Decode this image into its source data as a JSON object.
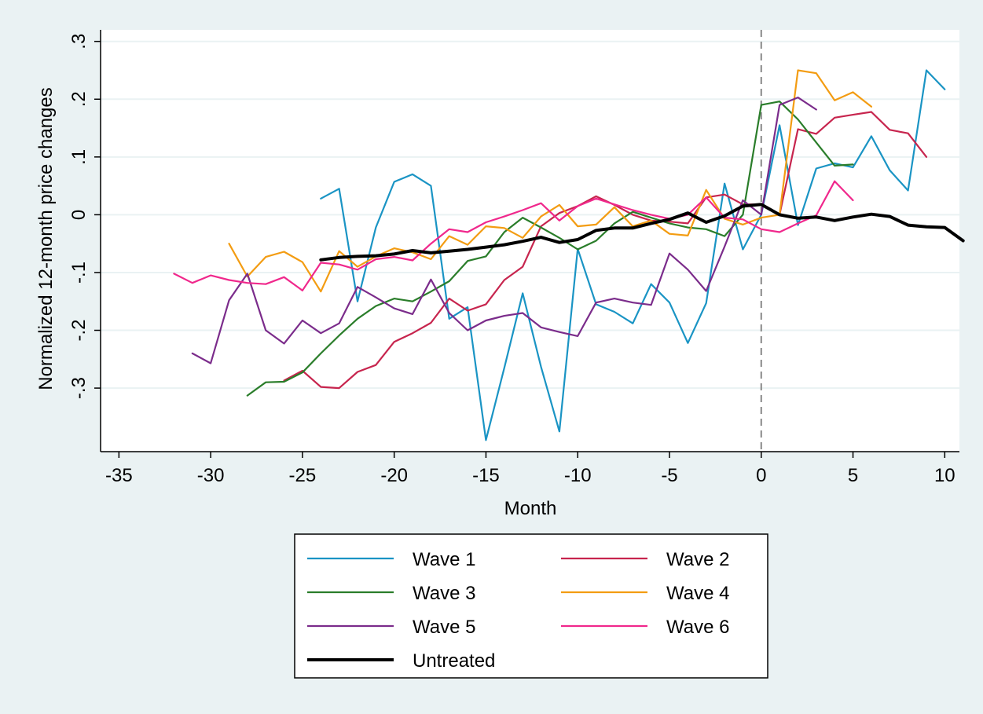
{
  "chart_data": {
    "type": "line",
    "title": "",
    "xlabel": "Month",
    "ylabel": "Normalized 12-month price changes",
    "xlim": [
      -36,
      10.8
    ],
    "ylim": [
      -0.41,
      0.32
    ],
    "xticks": [
      -35,
      -30,
      -25,
      -20,
      -15,
      -10,
      -5,
      0,
      5,
      10
    ],
    "yticks": [
      0.3,
      0.2,
      0.1,
      0,
      -0.1,
      -0.2,
      -0.3
    ],
    "ytick_labels": [
      ".3",
      ".2",
      ".1",
      "0",
      "-.1",
      "-.2",
      "-.3"
    ],
    "vline_x": 0,
    "grid": "horizontal",
    "legend_position": "bottom",
    "series": [
      {
        "name": "Wave 1",
        "color": "#1a94c4",
        "start": -24,
        "values": [
          0.028,
          0.045,
          -0.15,
          -0.022,
          0.057,
          0.07,
          0.05,
          -0.18,
          -0.16,
          -0.39,
          -0.265,
          -0.136,
          -0.263,
          -0.375,
          -0.059,
          -0.155,
          -0.168,
          -0.188,
          -0.12,
          -0.152,
          -0.222,
          -0.153,
          0.054,
          -0.06,
          0.0,
          0.155,
          -0.018,
          0.08,
          0.089,
          0.082,
          0.136,
          0.077,
          0.042,
          0.25,
          0.217
        ]
      },
      {
        "name": "Wave 2",
        "color": "#c7254e",
        "start": -26,
        "values": [
          -0.287,
          -0.27,
          -0.298,
          -0.3,
          -0.272,
          -0.26,
          -0.22,
          -0.205,
          -0.187,
          -0.145,
          -0.166,
          -0.155,
          -0.113,
          -0.09,
          -0.02,
          0.003,
          0.015,
          0.032,
          0.017,
          0.0,
          -0.01,
          -0.012,
          -0.015,
          0.03,
          0.035,
          0.018,
          0.018,
          0.0,
          0.148,
          0.14,
          0.168,
          0.173,
          0.178,
          0.147,
          0.141,
          0.1
        ]
      },
      {
        "name": "Wave 3",
        "color": "#2a7d2a",
        "start": -28,
        "values": [
          -0.313,
          -0.29,
          -0.289,
          -0.273,
          -0.24,
          -0.209,
          -0.18,
          -0.158,
          -0.145,
          -0.15,
          -0.133,
          -0.115,
          -0.08,
          -0.072,
          -0.03,
          -0.005,
          -0.022,
          -0.04,
          -0.06,
          -0.045,
          -0.015,
          0.005,
          -0.005,
          -0.015,
          -0.022,
          -0.025,
          -0.037,
          0.0,
          0.19,
          0.196,
          0.165,
          0.125,
          0.085,
          0.087
        ]
      },
      {
        "name": "Wave 4",
        "color": "#f39c12",
        "start": -29,
        "values": [
          -0.05,
          -0.107,
          -0.073,
          -0.064,
          -0.082,
          -0.133,
          -0.063,
          -0.09,
          -0.072,
          -0.058,
          -0.065,
          -0.077,
          -0.037,
          -0.052,
          -0.02,
          -0.023,
          -0.04,
          -0.003,
          0.017,
          -0.02,
          -0.017,
          0.013,
          -0.02,
          -0.01,
          -0.033,
          -0.036,
          0.043,
          -0.007,
          -0.017,
          -0.005,
          0.0,
          0.25,
          0.245,
          0.198,
          0.212,
          0.187
        ]
      },
      {
        "name": "Wave 5",
        "color": "#7b2c8b",
        "start": -31,
        "values": [
          -0.24,
          -0.257,
          -0.148,
          -0.102,
          -0.2,
          -0.223,
          -0.183,
          -0.205,
          -0.188,
          -0.125,
          -0.143,
          -0.162,
          -0.172,
          -0.112,
          -0.17,
          -0.2,
          -0.183,
          -0.175,
          -0.17,
          -0.195,
          -0.203,
          -0.21,
          -0.152,
          -0.145,
          -0.152,
          -0.156,
          -0.067,
          -0.095,
          -0.132,
          -0.055,
          0.025,
          0.0,
          0.19,
          0.203,
          0.182
        ]
      },
      {
        "name": "Wave 6",
        "color": "#f0288c",
        "start": -32,
        "values": [
          -0.102,
          -0.118,
          -0.105,
          -0.113,
          -0.118,
          -0.12,
          -0.108,
          -0.131,
          -0.083,
          -0.086,
          -0.095,
          -0.077,
          -0.073,
          -0.079,
          -0.05,
          -0.025,
          -0.03,
          -0.013,
          -0.003,
          0.008,
          0.02,
          -0.01,
          0.015,
          0.028,
          0.018,
          0.008,
          0.0,
          -0.007,
          0.0,
          0.03,
          -0.005,
          -0.008,
          -0.025,
          -0.03,
          -0.015,
          -0.001,
          0.058,
          0.025
        ]
      },
      {
        "name": "Untreated",
        "color": "#000000",
        "start": -24,
        "values": [
          -0.078,
          -0.074,
          -0.072,
          -0.071,
          -0.068,
          -0.062,
          -0.066,
          -0.063,
          -0.06,
          -0.056,
          -0.052,
          -0.046,
          -0.039,
          -0.048,
          -0.043,
          -0.027,
          -0.023,
          -0.023,
          -0.015,
          -0.008,
          0.003,
          -0.013,
          -0.002,
          0.015,
          0.018,
          0.0,
          -0.006,
          -0.004,
          -0.01,
          -0.004,
          0.001,
          -0.003,
          -0.018,
          -0.021,
          -0.022,
          -0.045
        ]
      }
    ]
  }
}
